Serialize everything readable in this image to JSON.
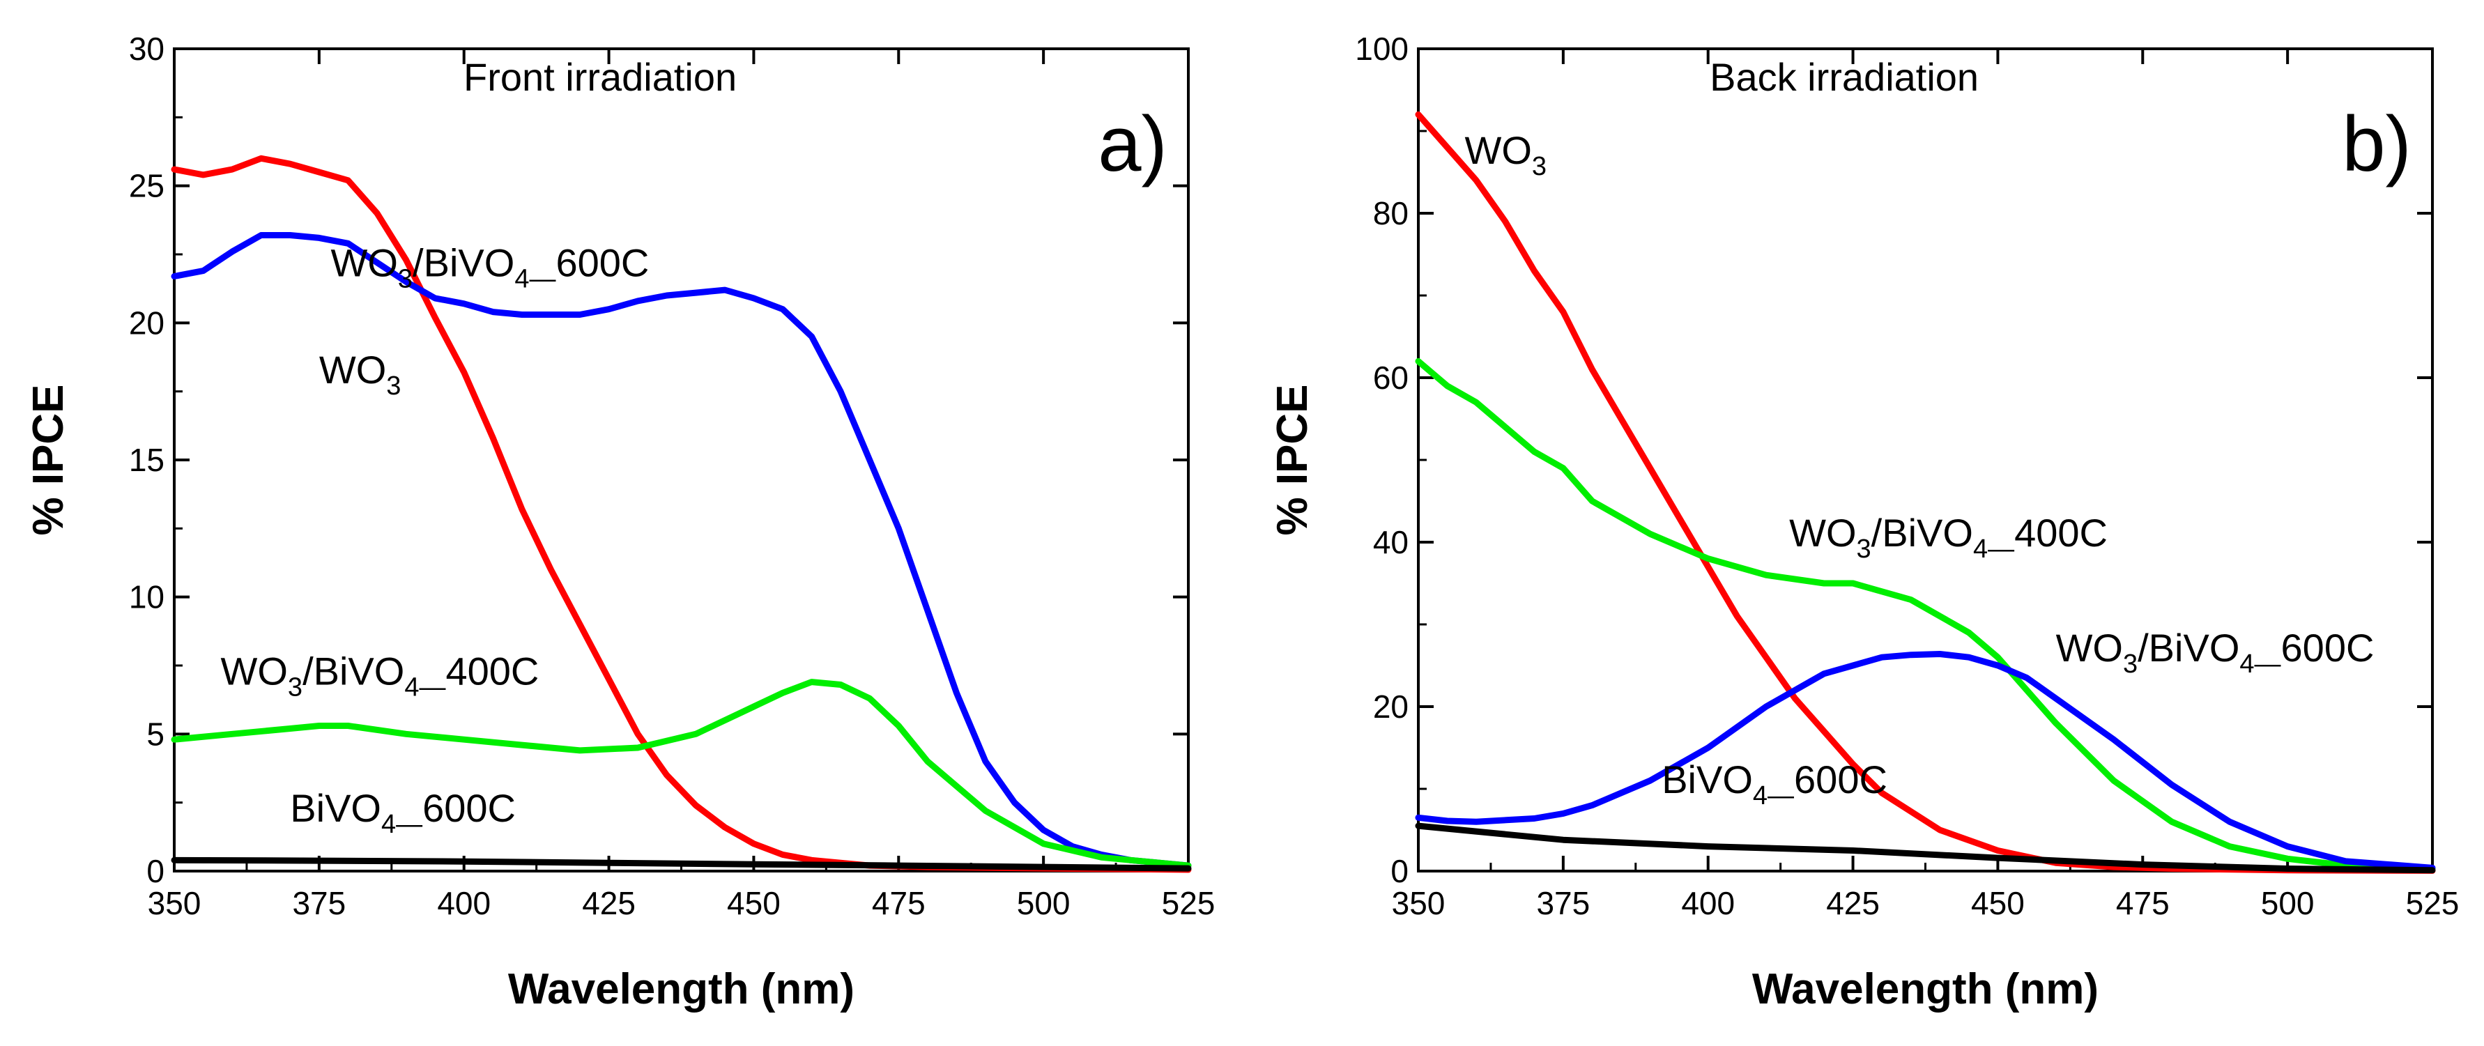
{
  "chart_data": [
    {
      "type": "line",
      "panel_label": "a)",
      "title": "Front irradiation",
      "xlabel": "Wavelength (nm)",
      "ylabel": "% IPCE",
      "xlim": [
        350,
        525
      ],
      "ylim": [
        0,
        30
      ],
      "xticks": [
        350,
        375,
        400,
        425,
        450,
        475,
        500,
        525
      ],
      "yticks": [
        0,
        5,
        10,
        15,
        20,
        25,
        30
      ],
      "grid": false,
      "series": [
        {
          "name": "WO3",
          "color": "#ff0000",
          "x": [
            350,
            355,
            360,
            365,
            370,
            375,
            380,
            385,
            390,
            395,
            400,
            405,
            410,
            415,
            420,
            425,
            430,
            435,
            440,
            445,
            450,
            455,
            460,
            465,
            470,
            480,
            500,
            525
          ],
          "y": [
            25.6,
            25.4,
            25.6,
            26.0,
            25.8,
            25.5,
            25.2,
            24.0,
            22.3,
            20.2,
            18.2,
            15.8,
            13.2,
            11.0,
            9.0,
            7.0,
            5.0,
            3.5,
            2.4,
            1.6,
            1.0,
            0.6,
            0.4,
            0.3,
            0.2,
            0.15,
            0.1,
            0.05
          ]
        },
        {
          "name": "WO3/BiVO4_600C",
          "color": "#0000ff",
          "x": [
            350,
            355,
            360,
            365,
            370,
            375,
            380,
            385,
            390,
            395,
            400,
            405,
            410,
            415,
            420,
            425,
            430,
            435,
            440,
            445,
            450,
            455,
            460,
            465,
            470,
            475,
            480,
            485,
            490,
            495,
            500,
            505,
            510,
            515,
            520,
            525
          ],
          "y": [
            21.7,
            21.9,
            22.6,
            23.2,
            23.2,
            23.1,
            22.9,
            22.2,
            21.5,
            20.9,
            20.7,
            20.4,
            20.3,
            20.3,
            20.3,
            20.5,
            20.8,
            21.0,
            21.1,
            21.2,
            20.9,
            20.5,
            19.5,
            17.5,
            15.0,
            12.5,
            9.5,
            6.5,
            4.0,
            2.5,
            1.5,
            0.9,
            0.6,
            0.4,
            0.3,
            0.2
          ]
        },
        {
          "name": "WO3/BiVO4_400C",
          "color": "#00ee00",
          "x": [
            350,
            360,
            370,
            375,
            380,
            390,
            400,
            410,
            420,
            430,
            440,
            450,
            455,
            460,
            465,
            470,
            475,
            480,
            490,
            500,
            510,
            525
          ],
          "y": [
            4.8,
            5.0,
            5.2,
            5.3,
            5.3,
            5.0,
            4.8,
            4.6,
            4.4,
            4.5,
            5.0,
            6.0,
            6.5,
            6.9,
            6.8,
            6.3,
            5.3,
            4.0,
            2.2,
            1.0,
            0.5,
            0.2
          ]
        },
        {
          "name": "BiVO4_600C",
          "color": "#000000",
          "x": [
            350,
            375,
            400,
            425,
            450,
            475,
            500,
            525
          ],
          "y": [
            0.4,
            0.38,
            0.35,
            0.3,
            0.25,
            0.2,
            0.15,
            0.1
          ]
        }
      ],
      "annotations": [
        {
          "text": "WO3/BiVO4_600C",
          "main": "WO",
          "sub1": "3",
          "mid": "/BiVO",
          "sub2": "4",
          "tail": "600C",
          "at": [
            377,
            21.7
          ]
        },
        {
          "text": "WO3",
          "main": "WO",
          "sub1": "3",
          "at": [
            375,
            17.8
          ]
        },
        {
          "text": "WO3/BiVO4_400C",
          "main": "WO",
          "sub1": "3",
          "mid": "/BiVO",
          "sub2": "4",
          "tail": "400C",
          "at": [
            358,
            6.8
          ]
        },
        {
          "text": "BiVO4_600C",
          "main": "BiVO",
          "sub1": "4",
          "tail": "600C",
          "at": [
            370,
            1.8
          ]
        }
      ]
    },
    {
      "type": "line",
      "panel_label": "b)",
      "title": "Back irradiation",
      "xlabel": "Wavelength (nm)",
      "ylabel": "% IPCE",
      "xlim": [
        350,
        525
      ],
      "ylim": [
        0,
        100
      ],
      "xticks": [
        350,
        375,
        400,
        425,
        450,
        475,
        500,
        525
      ],
      "yticks": [
        0,
        20,
        40,
        60,
        80,
        100
      ],
      "grid": false,
      "series": [
        {
          "name": "WO3",
          "color": "#ff0000",
          "x": [
            350,
            355,
            360,
            365,
            370,
            375,
            380,
            385,
            390,
            395,
            400,
            405,
            410,
            415,
            420,
            425,
            430,
            440,
            450,
            460,
            470,
            480,
            500,
            525
          ],
          "y": [
            92,
            88,
            84,
            79,
            73,
            68,
            61,
            55,
            49,
            43,
            37,
            31,
            26,
            21,
            17,
            13,
            9.5,
            5,
            2.5,
            1.0,
            0.5,
            0.3,
            0.1,
            0.05
          ]
        },
        {
          "name": "WO3/BiVO4_400C",
          "color": "#00ee00",
          "x": [
            350,
            355,
            360,
            365,
            370,
            375,
            380,
            390,
            400,
            410,
            420,
            425,
            430,
            435,
            440,
            445,
            450,
            455,
            460,
            470,
            480,
            490,
            500,
            510,
            525
          ],
          "y": [
            62,
            59,
            57,
            54,
            51,
            49,
            45,
            41,
            38,
            36,
            35,
            35,
            34,
            33,
            31,
            29,
            26,
            22,
            18,
            11,
            6,
            3,
            1.5,
            0.7,
            0.3
          ]
        },
        {
          "name": "WO3/BiVO4_600C",
          "color": "#0000ff",
          "x": [
            350,
            355,
            360,
            370,
            375,
            380,
            390,
            400,
            410,
            420,
            425,
            430,
            435,
            440,
            445,
            450,
            455,
            460,
            470,
            480,
            490,
            500,
            510,
            525
          ],
          "y": [
            6.5,
            6.1,
            6.0,
            6.4,
            7.0,
            8.0,
            11,
            15,
            20,
            24,
            25,
            26,
            26.3,
            26.4,
            26,
            25,
            23.5,
            21,
            16,
            10.5,
            6,
            3,
            1.2,
            0.4
          ]
        },
        {
          "name": "BiVO4_600C",
          "color": "#000000",
          "x": [
            350,
            375,
            400,
            425,
            450,
            475,
            500,
            525
          ],
          "y": [
            5.5,
            3.8,
            3.0,
            2.5,
            1.6,
            0.8,
            0.3,
            0.1
          ]
        }
      ],
      "annotations": [
        {
          "text": "WO3",
          "main": "WO",
          "sub1": "3",
          "at": [
            358,
            86
          ]
        },
        {
          "text": "WO3/BiVO4_400C",
          "main": "WO",
          "sub1": "3",
          "mid": "/BiVO",
          "sub2": "4",
          "tail": "400C",
          "at": [
            414,
            39.5
          ]
        },
        {
          "text": "WO3/BiVO4_600C",
          "main": "WO",
          "sub1": "3",
          "mid": "/BiVO",
          "sub2": "4",
          "tail": "600C",
          "at": [
            460,
            25.5
          ]
        },
        {
          "text": "BiVO4_600C",
          "main": "BiVO",
          "sub1": "4",
          "tail": "600C",
          "at": [
            392,
            9.5
          ]
        }
      ]
    }
  ]
}
